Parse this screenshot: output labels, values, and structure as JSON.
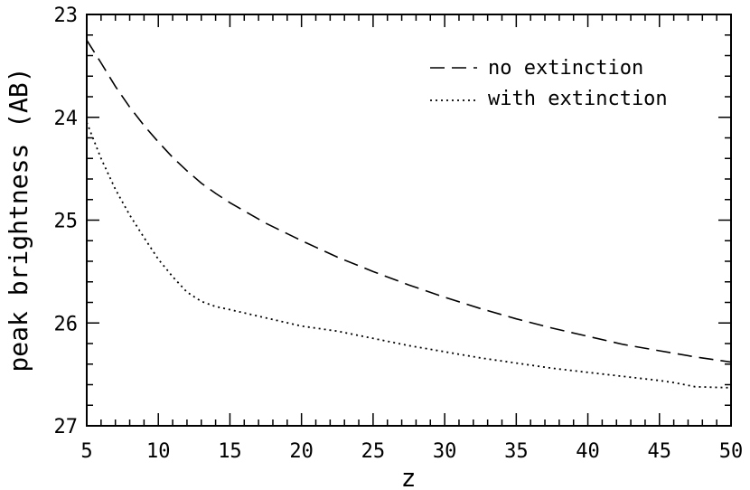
{
  "chart_data": {
    "type": "line",
    "title": "",
    "xlabel": "z",
    "ylabel": "peak brightness (AB)",
    "xlim": [
      5,
      50
    ],
    "ylim": [
      27,
      23
    ],
    "y_inverted": true,
    "grid": false,
    "legend_position": "top-right",
    "xticks": [
      5,
      10,
      15,
      20,
      25,
      30,
      35,
      40,
      45,
      50
    ],
    "yticks": [
      23,
      24,
      25,
      26,
      27
    ],
    "series": [
      {
        "name": "no extinction",
        "style": "dashed",
        "x": [
          5,
          6,
          7,
          8,
          9,
          10,
          11,
          12,
          13,
          14,
          15,
          17.5,
          20,
          22.5,
          25,
          27.5,
          30,
          32.5,
          35,
          37.5,
          40,
          42.5,
          45,
          47.5,
          50
        ],
        "y": [
          23.25,
          23.47,
          23.7,
          23.9,
          24.08,
          24.24,
          24.39,
          24.52,
          24.64,
          24.74,
          24.83,
          25.03,
          25.2,
          25.36,
          25.5,
          25.63,
          25.75,
          25.86,
          25.96,
          26.05,
          26.13,
          26.21,
          26.27,
          26.33,
          26.38
        ]
      },
      {
        "name": "with extinction",
        "style": "dotted",
        "x": [
          5,
          6,
          7,
          8,
          9,
          10,
          11,
          12,
          13,
          14,
          15,
          17.5,
          20,
          22.5,
          25,
          27.5,
          30,
          32.5,
          35,
          37.5,
          40,
          42.5,
          45,
          46,
          47.5,
          50
        ],
        "y": [
          24.05,
          24.4,
          24.7,
          24.95,
          25.17,
          25.38,
          25.55,
          25.7,
          25.79,
          25.84,
          25.87,
          25.95,
          26.03,
          26.08,
          26.15,
          26.22,
          26.28,
          26.34,
          26.39,
          26.44,
          26.48,
          26.52,
          26.56,
          26.58,
          26.62,
          26.63
        ]
      }
    ]
  }
}
